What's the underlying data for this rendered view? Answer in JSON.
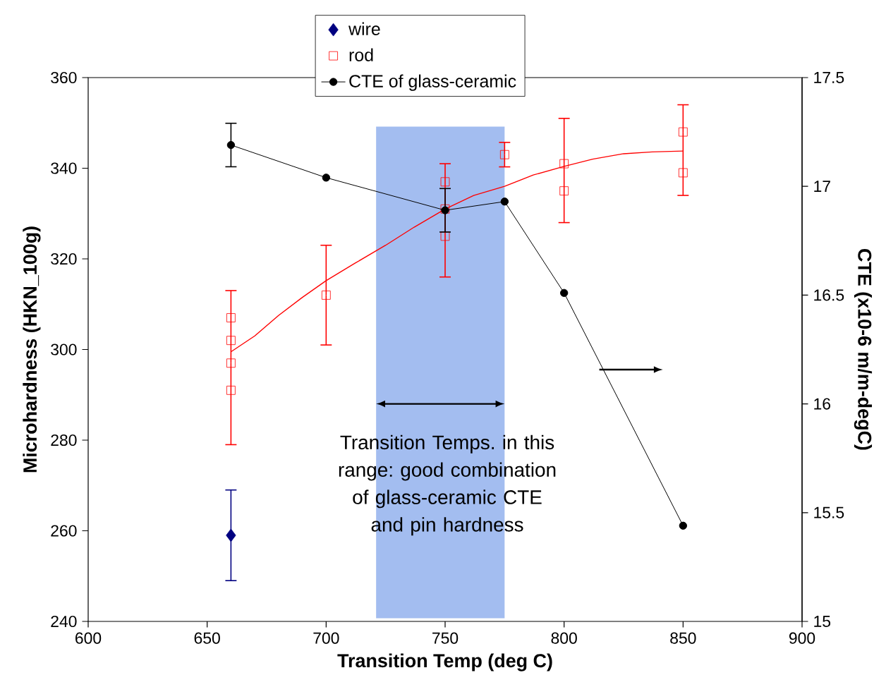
{
  "chart_data": {
    "type": "scatter",
    "xlabel": "Transition Temp (deg C)",
    "ylabel": "Microhardness (HKN_100g)",
    "y2label": "CTE (x10-6 m/m-degC)",
    "xlim": [
      600,
      900
    ],
    "xticks": [
      600,
      650,
      700,
      750,
      800,
      850,
      900
    ],
    "ylim": [
      240,
      360
    ],
    "yticks": [
      240,
      260,
      280,
      300,
      320,
      340,
      360
    ],
    "y2lim": [
      15,
      17.5
    ],
    "y2ticks": [
      15,
      15.5,
      16,
      16.5,
      17,
      17.5
    ],
    "grid": false,
    "legend": "top",
    "bands": [
      {
        "axis": "x",
        "from": 721,
        "to": 775,
        "color": "#a3bdf0"
      }
    ],
    "annotations": [
      "Transition Temps. in this range: good combination of glass-ceramic CTE and pin hardness"
    ],
    "series": [
      {
        "name": "wire",
        "type": "scatter",
        "marker": "diamond",
        "color": "#000080",
        "x": [
          660
        ],
        "values": [
          259
        ],
        "errors": [
          10
        ]
      },
      {
        "name": "rod",
        "type": "scatter",
        "marker": "square",
        "color": "#ff0000",
        "x": [
          660,
          660,
          660,
          660,
          700,
          750,
          750,
          750,
          775,
          800,
          800,
          850,
          850
        ],
        "values": [
          307,
          302,
          297,
          291,
          312,
          337,
          331,
          325,
          343,
          341,
          335,
          348,
          339
        ],
        "errors": [
          null,
          null,
          [
            279,
            313
          ],
          null,
          11,
          null,
          [
            316,
            341
          ],
          null,
          2.7,
          [
            328,
            351
          ],
          null,
          [
            334,
            354
          ],
          null
        ]
      },
      {
        "name": "CTE of glass-ceramic",
        "type": "line",
        "marker": "circle",
        "line_style": "solid",
        "axis": "y2",
        "color": "#000000",
        "x": [
          660,
          700,
          750,
          775,
          800,
          850
        ],
        "values": [
          17.19,
          17.04,
          16.89,
          16.93,
          16.51,
          15.44
        ],
        "errors": [
          0.1,
          null,
          0.1,
          null,
          null,
          null
        ]
      },
      {
        "type": "line",
        "marker": "none",
        "line_style": "solid",
        "color": "#ff0000",
        "x": [
          660,
          670,
          680,
          690,
          700,
          712,
          725,
          737,
          750,
          762,
          775,
          787,
          800,
          812,
          825,
          837,
          850
        ],
        "values": [
          299.5,
          303,
          307.5,
          311.5,
          315.2,
          319,
          323,
          327,
          331,
          334,
          336,
          338.5,
          340.4,
          342,
          343.2,
          343.6,
          343.8
        ]
      }
    ]
  }
}
